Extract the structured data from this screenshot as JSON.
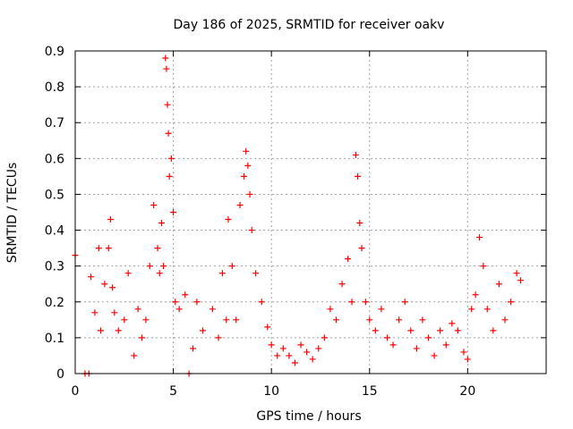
{
  "chart_data": {
    "type": "scatter",
    "title": "Day 186 of 2025, SRMTID for receiver oakv",
    "xlabel": "GPS time / hours",
    "ylabel": "SRMTID / TECUs",
    "xlim": [
      0,
      24
    ],
    "ylim": [
      0,
      0.9
    ],
    "xticks": [
      0,
      5,
      10,
      15,
      20
    ],
    "yticks": [
      0,
      0.1,
      0.2,
      0.3,
      0.4,
      0.5,
      0.6,
      0.7,
      0.8,
      0.9
    ],
    "grid": true,
    "series": [
      {
        "name": "SRMTID",
        "marker": "+",
        "color": "#ff0000",
        "x": [
          0.0,
          0.5,
          0.7,
          0.8,
          1.0,
          1.2,
          1.3,
          1.5,
          1.7,
          1.8,
          1.9,
          2.0,
          2.2,
          2.5,
          2.7,
          3.0,
          3.2,
          3.4,
          3.6,
          3.8,
          4.0,
          4.2,
          4.3,
          4.4,
          4.5,
          4.6,
          4.65,
          4.7,
          4.75,
          4.8,
          4.9,
          5.0,
          5.1,
          5.3,
          5.6,
          5.8,
          6.0,
          6.2,
          6.5,
          7.0,
          7.3,
          7.5,
          7.7,
          7.8,
          8.0,
          8.2,
          8.4,
          8.6,
          8.7,
          8.8,
          8.9,
          9.0,
          9.2,
          9.5,
          9.8,
          10.0,
          10.3,
          10.6,
          10.9,
          11.2,
          11.5,
          11.8,
          12.1,
          12.4,
          12.7,
          13.0,
          13.3,
          13.6,
          13.9,
          14.1,
          14.3,
          14.4,
          14.5,
          14.6,
          14.8,
          15.0,
          15.3,
          15.6,
          15.9,
          16.2,
          16.5,
          16.8,
          17.1,
          17.4,
          17.7,
          18.0,
          18.3,
          18.6,
          18.9,
          19.2,
          19.5,
          19.8,
          20.0,
          20.2,
          20.4,
          20.6,
          20.8,
          21.0,
          21.3,
          21.6,
          21.9,
          22.2,
          22.5,
          22.7
        ],
        "y": [
          0.33,
          0.0,
          0.0,
          0.27,
          0.17,
          0.35,
          0.12,
          0.25,
          0.35,
          0.43,
          0.24,
          0.17,
          0.12,
          0.15,
          0.28,
          0.05,
          0.18,
          0.1,
          0.15,
          0.3,
          0.47,
          0.35,
          0.28,
          0.42,
          0.3,
          0.88,
          0.85,
          0.75,
          0.67,
          0.55,
          0.6,
          0.45,
          0.2,
          0.18,
          0.22,
          0.0,
          0.07,
          0.2,
          0.12,
          0.18,
          0.1,
          0.28,
          0.15,
          0.43,
          0.3,
          0.15,
          0.47,
          0.55,
          0.62,
          0.58,
          0.5,
          0.4,
          0.28,
          0.2,
          0.13,
          0.08,
          0.05,
          0.07,
          0.05,
          0.03,
          0.08,
          0.06,
          0.04,
          0.07,
          0.1,
          0.18,
          0.15,
          0.25,
          0.32,
          0.2,
          0.61,
          0.55,
          0.42,
          0.35,
          0.2,
          0.15,
          0.12,
          0.18,
          0.1,
          0.08,
          0.15,
          0.2,
          0.12,
          0.07,
          0.15,
          0.1,
          0.05,
          0.12,
          0.08,
          0.14,
          0.12,
          0.06,
          0.04,
          0.18,
          0.22,
          0.38,
          0.3,
          0.18,
          0.12,
          0.25,
          0.15,
          0.2,
          0.28,
          0.26
        ]
      }
    ]
  }
}
